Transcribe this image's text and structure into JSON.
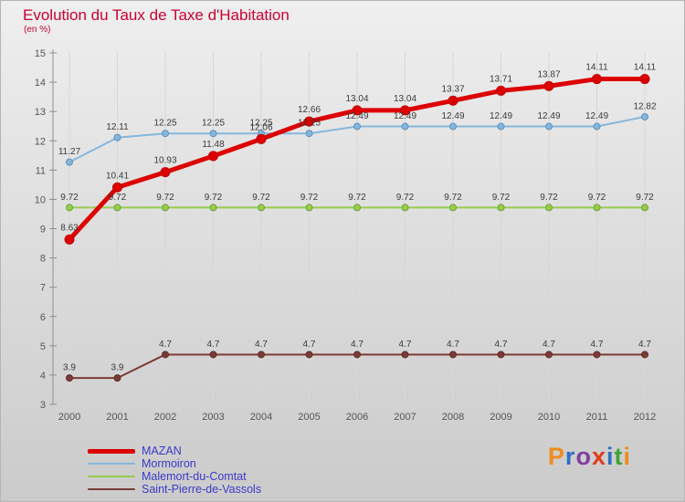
{
  "title": "Evolution du Taux de Taxe d'Habitation",
  "subtitle": "(en %)",
  "colors": {
    "title_text": "#cc0033",
    "legend_text": "#3a3ac8",
    "axis_text": "#555555",
    "point_label_text": "#3a3a3a",
    "gridline": "#d7d7d7",
    "axis_line": "#909090"
  },
  "chart_data": {
    "type": "line",
    "x": [
      2000,
      2001,
      2002,
      2003,
      2004,
      2005,
      2006,
      2007,
      2008,
      2009,
      2010,
      2011,
      2012
    ],
    "ylim": [
      3,
      15
    ],
    "ytick_step": 1,
    "grid": "vertical",
    "legend_position": "bottom-left",
    "title": "Evolution du Taux de Taxe d'Habitation",
    "ylabel": "en %",
    "series": [
      {
        "name": "MAZAN",
        "color": "#dd0000",
        "marker_stroke": "#c00000",
        "line_width": 5,
        "marker_radius": 5,
        "values": [
          8.63,
          10.41,
          10.93,
          11.48,
          12.06,
          12.66,
          13.04,
          13.04,
          13.37,
          13.71,
          13.87,
          14.11,
          14.11
        ]
      },
      {
        "name": "Mormoiron",
        "color": "#85b7dc",
        "marker_stroke": "#5e8fb8",
        "line_width": 2,
        "marker_radius": 3.5,
        "values": [
          11.27,
          12.11,
          12.25,
          12.25,
          12.25,
          12.25,
          12.49,
          12.49,
          12.49,
          12.49,
          12.49,
          12.49,
          12.82
        ]
      },
      {
        "name": "Malemort-du-Comtat",
        "color": "#97cc51",
        "marker_stroke": "#6da32e",
        "line_width": 2,
        "marker_radius": 3.5,
        "values": [
          9.72,
          9.72,
          9.72,
          9.72,
          9.72,
          9.72,
          9.72,
          9.72,
          9.72,
          9.72,
          9.72,
          9.72,
          9.72
        ]
      },
      {
        "name": "Saint-Pierre-de-Vassols",
        "color": "#7d3b36",
        "marker_stroke": "#5d2b27",
        "line_width": 2,
        "marker_radius": 3.5,
        "values": [
          3.9,
          3.9,
          4.7,
          4.7,
          4.7,
          4.7,
          4.7,
          4.7,
          4.7,
          4.7,
          4.7,
          4.7,
          4.7
        ]
      }
    ]
  },
  "legend": {
    "items": [
      {
        "label": "MAZAN"
      },
      {
        "label": "Mormoiron"
      },
      {
        "label": "Malemort-du-Comtat"
      },
      {
        "label": "Saint-Pierre-de-Vassols"
      }
    ]
  },
  "logo": {
    "text": "Proxiti",
    "letters": [
      {
        "ch": "P",
        "color": "#f08c1e"
      },
      {
        "ch": "r",
        "color": "#2f6fc4"
      },
      {
        "ch": "o",
        "color": "#7f3f9f"
      },
      {
        "ch": "x",
        "color": "#e03c1e"
      },
      {
        "ch": "i",
        "color": "#2f6fc4"
      },
      {
        "ch": "t",
        "color": "#3fa535"
      },
      {
        "ch": "i",
        "color": "#f08c1e"
      }
    ]
  }
}
